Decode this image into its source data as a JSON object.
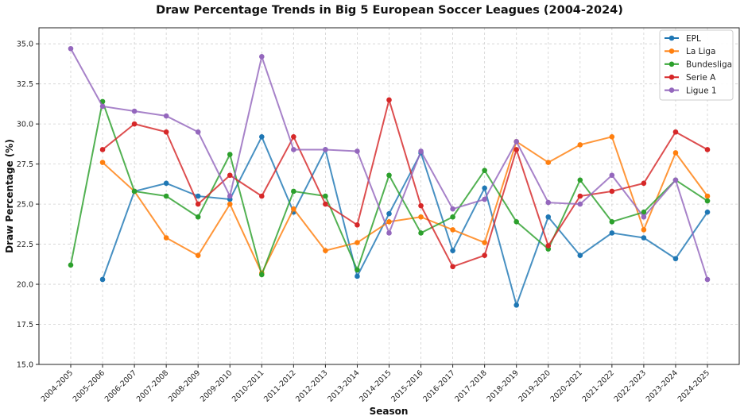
{
  "chart_data": {
    "type": "line",
    "title": "Draw Percentage Trends in Big 5 European Soccer Leagues (2004-2024)",
    "xlabel": "Season",
    "ylabel": "Draw Percentage (%)",
    "ylim": [
      15,
      36
    ],
    "yticks": [
      15.0,
      17.5,
      20.0,
      22.5,
      25.0,
      27.5,
      30.0,
      32.5,
      35.0
    ],
    "ytick_labels": [
      "15.0",
      "17.5",
      "20.0",
      "22.5",
      "25.0",
      "27.5",
      "30.0",
      "32.5",
      "35.0"
    ],
    "grid": true,
    "legend_position": "top-right",
    "categories": [
      "2004-2005",
      "2005-2006",
      "2006-2007",
      "2007-2008",
      "2008-2009",
      "2009-2010",
      "2010-2011",
      "2011-2012",
      "2012-2013",
      "2013-2014",
      "2014-2015",
      "2015-2016",
      "2016-2017",
      "2017-2018",
      "2018-2019",
      "2019-2020",
      "2020-2021",
      "2021-2022",
      "2022-2023",
      "2023-2024",
      "2024-2025"
    ],
    "series": [
      {
        "name": "EPL",
        "color": "#1f77b4",
        "values": [
          null,
          20.3,
          25.8,
          26.3,
          25.5,
          25.3,
          29.2,
          24.5,
          28.4,
          20.5,
          24.4,
          28.2,
          22.1,
          26.0,
          18.7,
          24.2,
          21.8,
          23.2,
          22.9,
          21.6,
          24.5
        ]
      },
      {
        "name": "La Liga",
        "color": "#ff7f0e",
        "values": [
          null,
          27.6,
          25.8,
          22.9,
          21.8,
          25.0,
          20.7,
          24.7,
          22.1,
          22.6,
          23.9,
          24.2,
          23.4,
          22.6,
          28.9,
          27.6,
          28.7,
          29.2,
          23.4,
          28.2,
          25.5
        ]
      },
      {
        "name": "Bundesliga",
        "color": "#2ca02c",
        "values": [
          21.2,
          31.4,
          25.8,
          25.5,
          24.2,
          28.1,
          20.6,
          25.8,
          25.5,
          20.9,
          26.8,
          23.2,
          24.2,
          27.1,
          23.9,
          22.2,
          26.5,
          23.9,
          24.5,
          26.5,
          25.2
        ]
      },
      {
        "name": "Serie A",
        "color": "#d62728",
        "values": [
          null,
          28.4,
          30.0,
          29.5,
          25.0,
          26.8,
          25.5,
          29.2,
          25.0,
          23.7,
          31.5,
          24.9,
          21.1,
          21.8,
          28.4,
          22.4,
          25.5,
          25.8,
          26.3,
          29.5,
          28.4
        ]
      },
      {
        "name": "Ligue 1",
        "color": "#9467bd",
        "values": [
          34.7,
          31.1,
          30.8,
          30.5,
          29.5,
          25.5,
          34.2,
          28.4,
          28.4,
          28.3,
          23.2,
          28.3,
          24.7,
          25.3,
          28.9,
          25.1,
          25.0,
          26.8,
          24.2,
          26.5,
          20.3
        ]
      }
    ]
  }
}
